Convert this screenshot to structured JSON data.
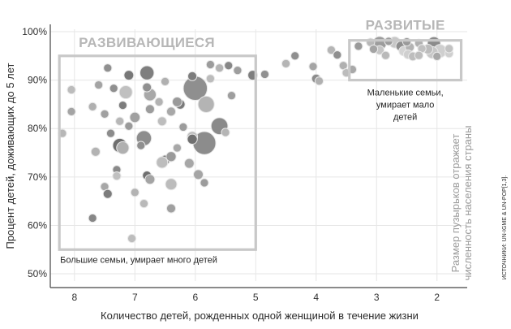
{
  "chart_data": {
    "type": "scatter",
    "title": "",
    "xlabel": "Количество детей, рожденных одной женщиной в течение жизни",
    "ylabel": "Процент детей, доживающих до 5 лет",
    "xlim": [
      8.4,
      1.5
    ],
    "ylim": [
      48.5,
      100.5
    ],
    "x_reversed": true,
    "grid": true,
    "x_ticks": [
      "8",
      "7",
      "6",
      "5",
      "4",
      "3",
      "2"
    ],
    "y_ticks": [
      "50%",
      "60%",
      "70%",
      "80%",
      "90%",
      "100%"
    ],
    "size_note": [
      "Размер пузырьков отражает",
      "численность населения страны"
    ],
    "source": "ИСТОЧНИКИ: UN-IGME & UN-POP[1,3].",
    "regions": [
      {
        "label": "РАЗВИВАЮЩИЕСЯ",
        "note": [
          "Большие семьи, умирает много детей"
        ],
        "x_range": [
          8.25,
          5.0
        ],
        "y_range": [
          55,
          95
        ]
      },
      {
        "label": "РАЗВИТЫЕ",
        "note": [
          "Маленькие семьи,",
          "умирает мало",
          "детей"
        ],
        "x_range": [
          3.45,
          1.6
        ],
        "y_range": [
          90,
          98.2
        ]
      }
    ],
    "points": [
      {
        "x": 6.0,
        "y": 88.3,
        "size": 1.0,
        "shade": "#8f8f8f"
      },
      {
        "x": 5.85,
        "y": 77.0,
        "size": 0.9,
        "shade": "#8c8c8c"
      },
      {
        "x": 5.6,
        "y": 80.5,
        "size": 0.45,
        "shade": "#8a8a8a"
      },
      {
        "x": 5.82,
        "y": 85.0,
        "size": 0.42,
        "shade": "#b4b4b4"
      },
      {
        "x": 6.8,
        "y": 91.5,
        "size": 0.3,
        "shade": "#7f7f7f"
      },
      {
        "x": 6.85,
        "y": 78.0,
        "size": 0.35,
        "shade": "#8d8d8d"
      },
      {
        "x": 7.25,
        "y": 76.5,
        "size": 0.3,
        "shade": "#6e6e6e"
      },
      {
        "x": 7.2,
        "y": 76.0,
        "size": 0.22,
        "shade": "#b0b0b0"
      },
      {
        "x": 7.15,
        "y": 87.5,
        "size": 0.25,
        "shade": "#c0c0c0"
      },
      {
        "x": 6.75,
        "y": 87.0,
        "size": 0.22,
        "shade": "#a8a8a8"
      },
      {
        "x": 7.1,
        "y": 91.0,
        "size": 0.12,
        "shade": "#777777"
      },
      {
        "x": 6.5,
        "y": 73.5,
        "size": 0.12,
        "shade": "#6e6e6e"
      },
      {
        "x": 6.55,
        "y": 73.0,
        "size": 0.18,
        "shade": "#bdbdbd"
      },
      {
        "x": 6.05,
        "y": 78.3,
        "size": 0.15,
        "shade": "#bcbcbc"
      },
      {
        "x": 6.05,
        "y": 77.8,
        "size": 0.13,
        "shade": "#707070"
      },
      {
        "x": 6.25,
        "y": 85.0,
        "size": 0.12,
        "shade": "#7a7a7a"
      },
      {
        "x": 6.4,
        "y": 74.2,
        "size": 0.13,
        "shade": "#9a9a9a"
      },
      {
        "x": 6.1,
        "y": 72.8,
        "size": 0.12,
        "shade": "#a7a7a7"
      },
      {
        "x": 6.8,
        "y": 70.3,
        "size": 0.1,
        "shade": "#6f6f6f"
      },
      {
        "x": 6.75,
        "y": 69.5,
        "size": 0.12,
        "shade": "#a4a4a4"
      },
      {
        "x": 7.3,
        "y": 71.5,
        "size": 0.08,
        "shade": "#8a8a8a"
      },
      {
        "x": 7.3,
        "y": 70.2,
        "size": 0.08,
        "shade": "#c0c0c0"
      },
      {
        "x": 7.0,
        "y": 82.3,
        "size": 0.14,
        "shade": "#a0a0a0"
      },
      {
        "x": 6.55,
        "y": 81.5,
        "size": 0.1,
        "shade": "#bdbdbd"
      },
      {
        "x": 6.4,
        "y": 83.5,
        "size": 0.1,
        "shade": "#a8a8a8"
      },
      {
        "x": 6.3,
        "y": 85.5,
        "size": 0.12,
        "shade": "#9a9a9a"
      },
      {
        "x": 6.75,
        "y": 84.0,
        "size": 0.1,
        "shade": "#9c9c9c"
      },
      {
        "x": 6.6,
        "y": 85.5,
        "size": 0.08,
        "shade": "#b3b3b3"
      },
      {
        "x": 7.2,
        "y": 84.8,
        "size": 0.08,
        "shade": "#7c7c7c"
      },
      {
        "x": 6.8,
        "y": 88.5,
        "size": 0.1,
        "shade": "#909090"
      },
      {
        "x": 6.05,
        "y": 90.8,
        "size": 0.1,
        "shade": "#7d7d7d"
      },
      {
        "x": 5.75,
        "y": 93.2,
        "size": 0.08,
        "shade": "#9c9c9c"
      },
      {
        "x": 5.45,
        "y": 93.0,
        "size": 0.08,
        "shade": "#878787"
      },
      {
        "x": 5.6,
        "y": 92.5,
        "size": 0.08,
        "shade": "#b4b4b4"
      },
      {
        "x": 5.3,
        "y": 92.0,
        "size": 0.08,
        "shade": "#9e9e9e"
      },
      {
        "x": 5.05,
        "y": 91.0,
        "size": 0.12,
        "shade": "#7e7e7e"
      },
      {
        "x": 5.75,
        "y": 90.3,
        "size": 0.08,
        "shade": "#bcbcbc"
      },
      {
        "x": 7.45,
        "y": 92.5,
        "size": 0.08,
        "shade": "#909090"
      },
      {
        "x": 7.6,
        "y": 89.0,
        "size": 0.08,
        "shade": "#a4a4a4"
      },
      {
        "x": 7.35,
        "y": 88.3,
        "size": 0.08,
        "shade": "#8f8f8f"
      },
      {
        "x": 7.7,
        "y": 84.5,
        "size": 0.08,
        "shade": "#b0b0b0"
      },
      {
        "x": 7.5,
        "y": 83.0,
        "size": 0.08,
        "shade": "#a0a0a0"
      },
      {
        "x": 7.25,
        "y": 81.5,
        "size": 0.08,
        "shade": "#b7b7b7"
      },
      {
        "x": 7.1,
        "y": 80.5,
        "size": 0.08,
        "shade": "#9a9a9a"
      },
      {
        "x": 7.4,
        "y": 79.0,
        "size": 0.08,
        "shade": "#8c8c8c"
      },
      {
        "x": 7.65,
        "y": 75.2,
        "size": 0.1,
        "shade": "#b3b3b3"
      },
      {
        "x": 7.5,
        "y": 68.0,
        "size": 0.08,
        "shade": "#a7a7a7"
      },
      {
        "x": 7.45,
        "y": 66.5,
        "size": 0.1,
        "shade": "#7c7c7c"
      },
      {
        "x": 7.0,
        "y": 66.8,
        "size": 0.08,
        "shade": "#b3b3b3"
      },
      {
        "x": 6.85,
        "y": 64.5,
        "size": 0.08,
        "shade": "#b9b9b9"
      },
      {
        "x": 6.4,
        "y": 63.5,
        "size": 0.1,
        "shade": "#a0a0a0"
      },
      {
        "x": 6.4,
        "y": 68.5,
        "size": 0.18,
        "shade": "#bcbcbc"
      },
      {
        "x": 5.95,
        "y": 70.5,
        "size": 0.12,
        "shade": "#a5a5a5"
      },
      {
        "x": 5.85,
        "y": 68.8,
        "size": 0.08,
        "shade": "#9c9c9c"
      },
      {
        "x": 7.7,
        "y": 61.5,
        "size": 0.08,
        "shade": "#878787"
      },
      {
        "x": 7.05,
        "y": 57.3,
        "size": 0.08,
        "shade": "#bdbdbd"
      },
      {
        "x": 8.05,
        "y": 88.0,
        "size": 0.08,
        "shade": "#bcbcbc"
      },
      {
        "x": 8.05,
        "y": 83.5,
        "size": 0.08,
        "shade": "#a4a4a4"
      },
      {
        "x": 8.2,
        "y": 79.0,
        "size": 0.08,
        "shade": "#b7b7b7"
      },
      {
        "x": 6.2,
        "y": 80.3,
        "size": 0.08,
        "shade": "#9c9c9c"
      },
      {
        "x": 6.9,
        "y": 76.5,
        "size": 0.08,
        "shade": "#8f8f8f"
      },
      {
        "x": 6.3,
        "y": 76.0,
        "size": 0.08,
        "shade": "#a8a8a8"
      },
      {
        "x": 5.5,
        "y": 79.2,
        "size": 0.08,
        "shade": "#b5b5b5"
      },
      {
        "x": 5.4,
        "y": 86.8,
        "size": 0.08,
        "shade": "#9e9e9e"
      },
      {
        "x": 6.5,
        "y": 89.7,
        "size": 0.08,
        "shade": "#b0b0b0"
      },
      {
        "x": 4.85,
        "y": 91.2,
        "size": 0.08,
        "shade": "#909090"
      },
      {
        "x": 4.5,
        "y": 93.4,
        "size": 0.08,
        "shade": "#b5b5b5"
      },
      {
        "x": 4.35,
        "y": 95.0,
        "size": 0.08,
        "shade": "#8f8f8f"
      },
      {
        "x": 4.05,
        "y": 92.8,
        "size": 0.08,
        "shade": "#a5a5a5"
      },
      {
        "x": 4.0,
        "y": 90.3,
        "size": 0.1,
        "shade": "#8c8c8c"
      },
      {
        "x": 3.95,
        "y": 89.8,
        "size": 0.08,
        "shade": "#b0b0b0"
      },
      {
        "x": 3.75,
        "y": 96.2,
        "size": 0.08,
        "shade": "#b5b5b5"
      },
      {
        "x": 3.65,
        "y": 95.2,
        "size": 0.08,
        "shade": "#8f8f8f"
      },
      {
        "x": 3.55,
        "y": 93.0,
        "size": 0.08,
        "shade": "#b0b0b0"
      },
      {
        "x": 3.5,
        "y": 91.5,
        "size": 0.08,
        "shade": "#bcbcbc"
      },
      {
        "x": 3.4,
        "y": 92.2,
        "size": 0.08,
        "shade": "#a8a8a8"
      },
      {
        "x": 3.3,
        "y": 97.0,
        "size": 0.08,
        "shade": "#9a9a9a"
      },
      {
        "x": 2.95,
        "y": 97.6,
        "size": 0.28,
        "shade": "#9c9c9c"
      },
      {
        "x": 2.7,
        "y": 97.8,
        "size": 0.18,
        "shade": "#c7c7c7"
      },
      {
        "x": 2.6,
        "y": 97.0,
        "size": 0.12,
        "shade": "#8f8f8f"
      },
      {
        "x": 2.55,
        "y": 96.0,
        "size": 0.12,
        "shade": "#d4d4d4"
      },
      {
        "x": 2.45,
        "y": 96.8,
        "size": 0.1,
        "shade": "#b3b3b3"
      },
      {
        "x": 2.48,
        "y": 95.3,
        "size": 0.1,
        "shade": "#cfcfcf"
      },
      {
        "x": 2.4,
        "y": 94.9,
        "size": 0.09,
        "shade": "#bdbdbd"
      },
      {
        "x": 2.05,
        "y": 97.6,
        "size": 0.25,
        "shade": "#8b8b8b"
      },
      {
        "x": 1.95,
        "y": 96.0,
        "size": 0.25,
        "shade": "#cfcfcf"
      },
      {
        "x": 2.08,
        "y": 95.7,
        "size": 0.2,
        "shade": "#c7c7c7"
      },
      {
        "x": 2.15,
        "y": 96.4,
        "size": 0.12,
        "shade": "#bcbcbc"
      },
      {
        "x": 1.8,
        "y": 95.5,
        "size": 0.08,
        "shade": "#cfcfcf"
      },
      {
        "x": 2.95,
        "y": 96.2,
        "size": 0.1,
        "shade": "#c5c5c5"
      },
      {
        "x": 3.1,
        "y": 97.8,
        "size": 0.08,
        "shade": "#b7b7b7"
      },
      {
        "x": 3.05,
        "y": 96.4,
        "size": 0.08,
        "shade": "#a4a4a4"
      },
      {
        "x": 2.85,
        "y": 95.1,
        "size": 0.08,
        "shade": "#b9b9b9"
      },
      {
        "x": 2.8,
        "y": 98.0,
        "size": 0.08,
        "shade": "#9c9c9c"
      },
      {
        "x": 2.5,
        "y": 97.9,
        "size": 0.08,
        "shade": "#9a9a9a"
      },
      {
        "x": 2.3,
        "y": 97.6,
        "size": 0.08,
        "shade": "#b0b0b0"
      },
      {
        "x": 2.25,
        "y": 96.5,
        "size": 0.08,
        "shade": "#c0c0c0"
      },
      {
        "x": 2.3,
        "y": 95.1,
        "size": 0.08,
        "shade": "#bdbdbd"
      },
      {
        "x": 2.0,
        "y": 94.9,
        "size": 0.08,
        "shade": "#a8a8a8"
      },
      {
        "x": 1.8,
        "y": 96.5,
        "size": 0.08,
        "shade": "#c2c2c2"
      }
    ]
  }
}
